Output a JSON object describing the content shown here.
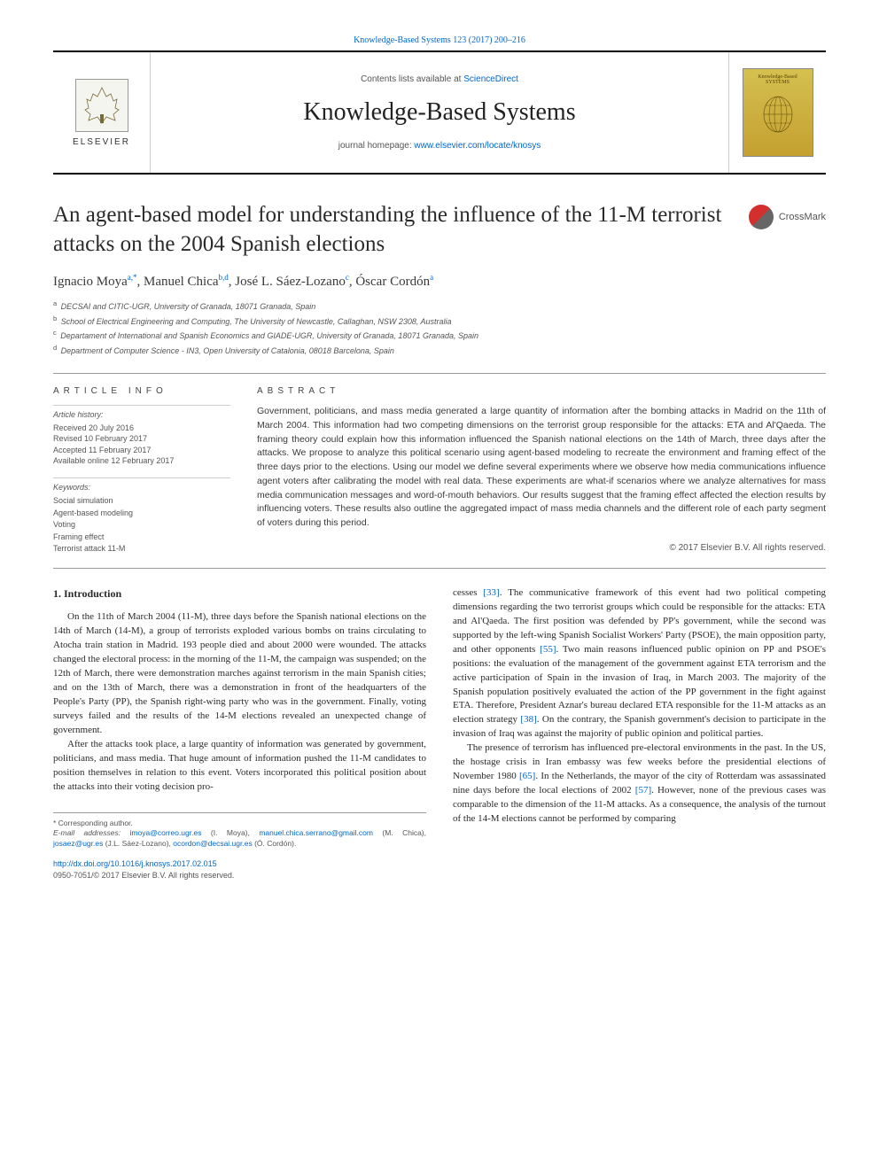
{
  "header": {
    "citation": "Knowledge-Based Systems 123 (2017) 200–216",
    "contents_prefix": "Contents lists available at ",
    "contents_link": "ScienceDirect",
    "journal_name": "Knowledge-Based Systems",
    "homepage_prefix": "journal homepage: ",
    "homepage_link": "www.elsevier.com/locate/knosys",
    "publisher_label": "ELSEVIER",
    "cover_text": "Knowledge-Based SYSTEMS"
  },
  "crossmark": "CrossMark",
  "title": "An agent-based model for understanding the influence of the 11-M terrorist attacks on the 2004 Spanish elections",
  "authors_html": "Ignacio Moya<sup>a,*</sup>, Manuel Chica<sup>b,d</sup>, José L. Sáez-Lozano<sup>c</sup>, Óscar Cordón<sup>a</sup>",
  "affiliations": [
    {
      "sup": "a",
      "text": "DECSAI and CITIC-UGR, University of Granada, 18071 Granada, Spain"
    },
    {
      "sup": "b",
      "text": "School of Electrical Engineering and Computing, The University of Newcastle, Callaghan, NSW 2308, Australia"
    },
    {
      "sup": "c",
      "text": "Departament of International and Spanish Economics and GIADE-UGR, University of Granada, 18071 Granada, Spain"
    },
    {
      "sup": "d",
      "text": "Department of Computer Science - IN3, Open University of Catalonia, 08018 Barcelona, Spain"
    }
  ],
  "article_info": {
    "heading": "ARTICLE INFO",
    "history_label": "Article history:",
    "history": [
      "Received 20 July 2016",
      "Revised 10 February 2017",
      "Accepted 11 February 2017",
      "Available online 12 February 2017"
    ],
    "keywords_label": "Keywords:",
    "keywords": [
      "Social simulation",
      "Agent-based modeling",
      "Voting",
      "Framing effect",
      "Terrorist attack 11-M"
    ]
  },
  "abstract": {
    "heading": "ABSTRACT",
    "text": "Government, politicians, and mass media generated a large quantity of information after the bombing attacks in Madrid on the 11th of March 2004. This information had two competing dimensions on the terrorist group responsible for the attacks: ETA and Al'Qaeda. The framing theory could explain how this information influenced the Spanish national elections on the 14th of March, three days after the attacks. We propose to analyze this political scenario using agent-based modeling to recreate the environment and framing effect of the three days prior to the elections. Using our model we define several experiments where we observe how media communications influence agent voters after calibrating the model with real data. These experiments are what-if scenarios where we analyze alternatives for mass media communication messages and word-of-mouth behaviors. Our results suggest that the framing effect affected the election results by influencing voters. These results also outline the aggregated impact of mass media channels and the different role of each party segment of voters during this period.",
    "copyright": "© 2017 Elsevier B.V. All rights reserved."
  },
  "body": {
    "section_heading": "1. Introduction",
    "col1_p1": "On the 11th of March 2004 (11-M), three days before the Spanish national elections on the 14th of March (14-M), a group of terrorists exploded various bombs on trains circulating to Atocha train station in Madrid. 193 people died and about 2000 were wounded. The attacks changed the electoral process: in the morning of the 11-M, the campaign was suspended; on the 12th of March, there were demonstration marches against terrorism in the main Spanish cities; and on the 13th of March, there was a demonstration in front of the headquarters of the People's Party (PP), the Spanish right-wing party who was in the government. Finally, voting surveys failed and the results of the 14-M elections revealed an unexpected change of government.",
    "col1_p2": "After the attacks took place, a large quantity of information was generated by government, politicians, and mass media. That huge amount of information pushed the 11-M candidates to position themselves in relation to this event. Voters incorporated this political position about the attacks into their voting decision pro-",
    "col2_p1_a": "cesses ",
    "col2_p1_ref1": "[33]",
    "col2_p1_b": ". The communicative framework of this event had two political competing dimensions regarding the two terrorist groups which could be responsible for the attacks: ETA and Al'Qaeda. The first position was defended by PP's government, while the second was supported by the left-wing Spanish Socialist Workers' Party (PSOE), the main opposition party, and other opponents ",
    "col2_p1_ref2": "[55]",
    "col2_p1_c": ". Two main reasons influenced public opinion on PP and PSOE's positions: the evaluation of the management of the government against ETA terrorism and the active participation of Spain in the invasion of Iraq, in March 2003. The majority of the Spanish population positively evaluated the action of the PP government in the fight against ETA. Therefore, President Aznar's bureau declared ETA responsible for the 11-M attacks as an election strategy ",
    "col2_p1_ref3": "[38]",
    "col2_p1_d": ". On the contrary, the Spanish government's decision to participate in the invasion of Iraq was against the majority of public opinion and political parties.",
    "col2_p2_a": "The presence of terrorism has influenced pre-electoral environments in the past. In the US, the hostage crisis in Iran embassy was few weeks before the presidential elections of November 1980 ",
    "col2_p2_ref1": "[65]",
    "col2_p2_b": ". In the Netherlands, the mayor of the city of Rotterdam was assassinated nine days before the local elections of 2002 ",
    "col2_p2_ref2": "[57]",
    "col2_p2_c": ". However, none of the previous cases was comparable to the dimension of the 11-M attacks. As a consequence, the analysis of the turnout of the 14-M elections cannot be performed by comparing"
  },
  "footnotes": {
    "corresponding": "* Corresponding author.",
    "emails_label": "E-mail addresses: ",
    "emails": [
      {
        "addr": "imoya@correo.ugr.es",
        "name": "(I. Moya)"
      },
      {
        "addr": "manuel.chica.serrano@gmail.com",
        "name": "(M. Chica)"
      },
      {
        "addr": "josaez@ugr.es",
        "name": "(J.L. Sáez-Lozano)"
      },
      {
        "addr": "ocordon@decsai.ugr.es",
        "name": "(Ó. Cordón)"
      }
    ]
  },
  "doi": {
    "url": "http://dx.doi.org/10.1016/j.knosys.2017.02.015",
    "issn_line": "0950-7051/© 2017 Elsevier B.V. All rights reserved."
  },
  "colors": {
    "link": "#0066cc",
    "text": "#333333",
    "muted": "#555555",
    "rule": "#999999"
  }
}
